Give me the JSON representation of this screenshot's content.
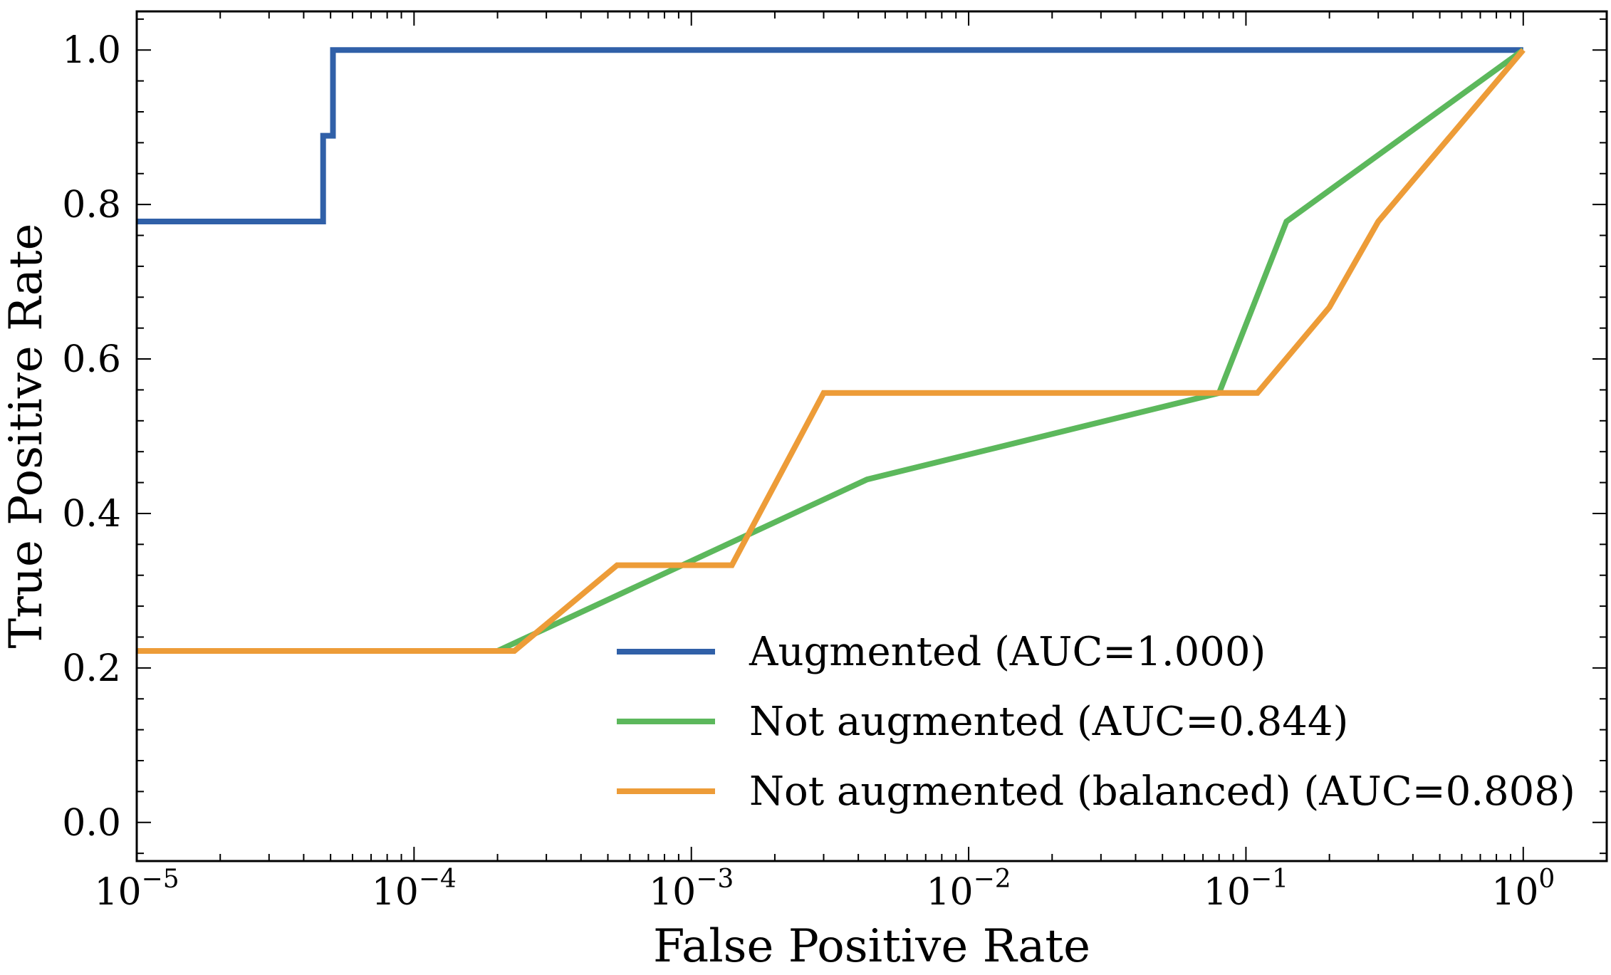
{
  "chart_data": {
    "type": "line",
    "title": "",
    "xlabel": "False Positive Rate",
    "ylabel": "True Positive Rate",
    "xscale": "log",
    "xlim": [
      1e-05,
      2
    ],
    "ylim": [
      -0.05,
      1.05
    ],
    "grid": false,
    "legend_position": "bottom-right",
    "x_ticks": [
      {
        "base": "10",
        "exp": "−5",
        "value": 1e-05
      },
      {
        "base": "10",
        "exp": "−4",
        "value": 0.0001
      },
      {
        "base": "10",
        "exp": "−3",
        "value": 0.001
      },
      {
        "base": "10",
        "exp": "−2",
        "value": 0.01
      },
      {
        "base": "10",
        "exp": "−1",
        "value": 0.1
      },
      {
        "base": "10",
        "exp": "0",
        "value": 1
      }
    ],
    "y_ticks": [
      {
        "label": "0.0",
        "value": 0.0
      },
      {
        "label": "0.2",
        "value": 0.2
      },
      {
        "label": "0.4",
        "value": 0.4
      },
      {
        "label": "0.6",
        "value": 0.6
      },
      {
        "label": "0.8",
        "value": 0.8
      },
      {
        "label": "1.0",
        "value": 1.0
      }
    ],
    "series": [
      {
        "name": "Augmented (AUC=1.000)",
        "color": "#3060a8",
        "x": [
          1e-05,
          4.7e-05,
          4.7e-05,
          5.1e-05,
          5.1e-05,
          1.0
        ],
        "y": [
          0.778,
          0.778,
          0.889,
          0.889,
          1.0,
          1.0
        ]
      },
      {
        "name": "Not augmented (AUC=0.844)",
        "color": "#5cb85c",
        "x": [
          1e-05,
          0.0002,
          0.0043,
          0.08,
          0.14,
          1.0
        ],
        "y": [
          0.222,
          0.222,
          0.444,
          0.556,
          0.778,
          1.0
        ]
      },
      {
        "name": "Not augmented (balanced) (AUC=0.808)",
        "color": "#ed9c38",
        "x": [
          1e-05,
          0.00023,
          0.00054,
          0.0014,
          0.003,
          0.11,
          0.2,
          0.3,
          1.0
        ],
        "y": [
          0.222,
          0.222,
          0.333,
          0.333,
          0.556,
          0.556,
          0.667,
          0.778,
          1.0
        ]
      }
    ]
  }
}
